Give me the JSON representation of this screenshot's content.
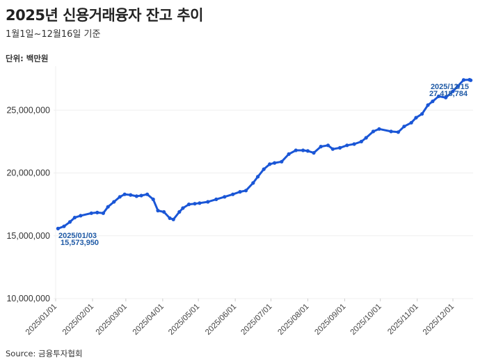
{
  "header": {
    "title": "2025년 신용거래융자 잔고 추이",
    "subtitle": "1월1일~12월16일 기준",
    "unit": "단위: 백만원"
  },
  "footer": {
    "source": "Source: 금융투자협회"
  },
  "colors": {
    "line": "#1a56d6",
    "annotation": "#1f5aa6",
    "grid": "#efefef"
  },
  "chart_data": {
    "type": "line",
    "title": "2025년 신용거래융자 잔고 추이",
    "subtitle": "1월1일~12월16일 기준",
    "xlabel": "",
    "ylabel": "단위: 백만원",
    "ylim": [
      10000000,
      27500000
    ],
    "yticks": [
      "10,000,000",
      "15,000,000",
      "20,000,000",
      "25,000,000"
    ],
    "ytick_values": [
      10000000,
      15000000,
      20000000,
      25000000
    ],
    "xticks": [
      "2025/01/01",
      "2025/02/01",
      "2025/03/01",
      "2025/04/01",
      "2025/05/01",
      "2025/06/01",
      "2025/07/01",
      "2025/08/01",
      "2025/09/01",
      "2025/10/01",
      "2025/11/01",
      "2025/12/01"
    ],
    "grid": true,
    "legend": "none",
    "annotations": [
      {
        "date": "2025/01/03",
        "value_label": "15,573,950"
      },
      {
        "date": "2025/12/15",
        "value_label": "27,418,784"
      }
    ],
    "series": [
      {
        "name": "신용거래융자 잔고",
        "x": [
          "2025/01/03",
          "2025/01/08",
          "2025/01/13",
          "2025/01/17",
          "2025/01/22",
          "2025/01/31",
          "2025/02/05",
          "2025/02/10",
          "2025/02/14",
          "2025/02/19",
          "2025/02/24",
          "2025/02/28",
          "2025/03/05",
          "2025/03/10",
          "2025/03/14",
          "2025/03/19",
          "2025/03/24",
          "2025/03/28",
          "2025/04/02",
          "2025/04/07",
          "2025/04/10",
          "2025/04/15",
          "2025/04/18",
          "2025/04/23",
          "2025/04/28",
          "2025/05/02",
          "2025/05/09",
          "2025/05/16",
          "2025/05/23",
          "2025/05/30",
          "2025/06/05",
          "2025/06/10",
          "2025/06/16",
          "2025/06/20",
          "2025/06/25",
          "2025/06/30",
          "2025/07/04",
          "2025/07/10",
          "2025/07/16",
          "2025/07/22",
          "2025/07/28",
          "2025/08/01",
          "2025/08/06",
          "2025/08/12",
          "2025/08/18",
          "2025/08/22",
          "2025/08/28",
          "2025/09/03",
          "2025/09/09",
          "2025/09/15",
          "2025/09/19",
          "2025/09/25",
          "2025/09/30",
          "2025/10/10",
          "2025/10/16",
          "2025/10/21",
          "2025/10/27",
          "2025/10/31",
          "2025/11/05",
          "2025/11/10",
          "2025/11/14",
          "2025/11/19",
          "2025/11/25",
          "2025/12/01",
          "2025/12/05",
          "2025/12/10",
          "2025/12/15",
          "2025/12/16"
        ],
        "values": [
          15573950,
          15750000,
          16100000,
          16450000,
          16600000,
          16800000,
          16850000,
          16800000,
          17300000,
          17700000,
          18100000,
          18300000,
          18250000,
          18150000,
          18200000,
          18300000,
          17900000,
          17000000,
          16900000,
          16400000,
          16300000,
          16900000,
          17200000,
          17500000,
          17550000,
          17600000,
          17700000,
          17900000,
          18100000,
          18300000,
          18500000,
          18600000,
          19200000,
          19700000,
          20300000,
          20700000,
          20800000,
          20900000,
          21500000,
          21800000,
          21800000,
          21750000,
          21600000,
          22100000,
          22200000,
          21900000,
          22000000,
          22200000,
          22300000,
          22500000,
          22800000,
          23300000,
          23500000,
          23300000,
          23250000,
          23700000,
          24000000,
          24400000,
          24700000,
          25400000,
          25700000,
          26100000,
          26000000,
          26500000,
          26900000,
          27400000,
          27418784,
          27380000
        ]
      }
    ]
  }
}
